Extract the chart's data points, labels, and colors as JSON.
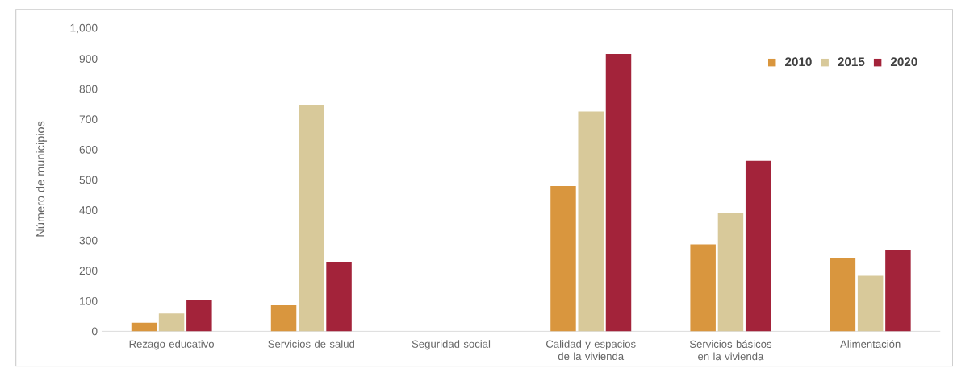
{
  "chart_data": {
    "type": "bar",
    "ylabel": "Número de municipios",
    "categories": [
      "Rezago educativo",
      "Servicios de salud",
      "Seguridad social",
      "Calidad y espacios de la vivienda",
      "Servicios básicos en la vivienda",
      "Alimentación"
    ],
    "series": [
      {
        "name": "2010",
        "color": "#d9963e",
        "values": [
          28,
          86,
          null,
          480,
          287,
          241
        ]
      },
      {
        "name": "2015",
        "color": "#d8c99a",
        "values": [
          59,
          746,
          null,
          726,
          392,
          183
        ]
      },
      {
        "name": "2020",
        "color": "#a3233a",
        "values": [
          104,
          230,
          null,
          916,
          563,
          267
        ]
      }
    ],
    "ylim": [
      0,
      1000
    ],
    "yticks": [
      0,
      {
        "value": 100,
        "label": "100"
      },
      {
        "value": 200,
        "label": "200"
      },
      {
        "value": 300,
        "label": "300"
      },
      {
        "value": 400,
        "label": "400"
      },
      {
        "value": 500,
        "label": "500"
      },
      {
        "value": 600,
        "label": "600"
      },
      {
        "value": 700,
        "label": "700"
      },
      {
        "value": 800,
        "label": "800"
      },
      {
        "value": 900,
        "label": "900"
      },
      {
        "value": 1000,
        "label": "1,000"
      }
    ],
    "grid": false,
    "legend": "top right"
  }
}
